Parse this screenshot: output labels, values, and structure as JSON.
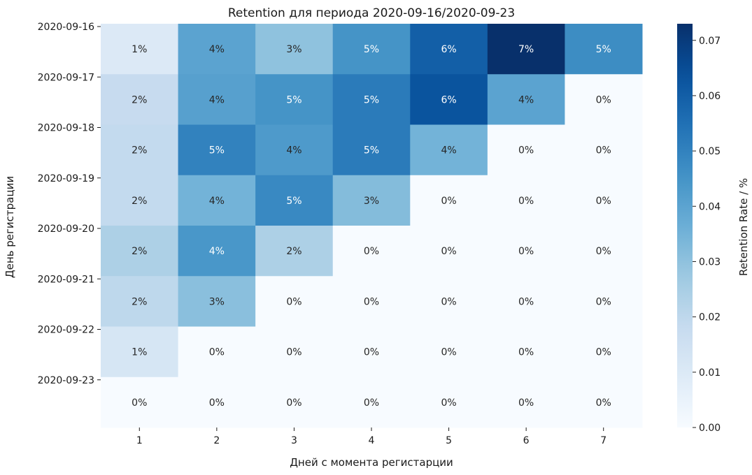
{
  "chart_data": {
    "type": "heatmap",
    "title": "Retention для периода 2020-09-16/2020-09-23",
    "xlabel": "Дней с момента регистарции",
    "ylabel": "День регистрации",
    "x_categories": [
      "1",
      "2",
      "3",
      "4",
      "5",
      "6",
      "7"
    ],
    "y_categories": [
      "2020-09-16",
      "2020-09-17",
      "2020-09-18",
      "2020-09-19",
      "2020-09-20",
      "2020-09-21",
      "2020-09-22",
      "2020-09-23"
    ],
    "values": [
      [
        0.01,
        0.04,
        0.03,
        0.045,
        0.06,
        0.073,
        0.047
      ],
      [
        0.018,
        0.041,
        0.045,
        0.052,
        0.063,
        0.04,
        0.0
      ],
      [
        0.019,
        0.05,
        0.043,
        0.052,
        0.035,
        0.0,
        0.0
      ],
      [
        0.019,
        0.035,
        0.048,
        0.032,
        0.0,
        0.0,
        0.0
      ],
      [
        0.024,
        0.044,
        0.024,
        0.0,
        0.0,
        0.0,
        0.0
      ],
      [
        0.02,
        0.031,
        0.0,
        0.0,
        0.0,
        0.0,
        0.0
      ],
      [
        0.012,
        0.0,
        0.0,
        0.0,
        0.0,
        0.0,
        0.0
      ],
      [
        0.0,
        0.0,
        0.0,
        0.0,
        0.0,
        0.0,
        0.0
      ]
    ],
    "cell_labels": [
      [
        "1%",
        "4%",
        "3%",
        "5%",
        "6%",
        "7%",
        "5%"
      ],
      [
        "2%",
        "4%",
        "5%",
        "5%",
        "6%",
        "4%",
        "0%"
      ],
      [
        "2%",
        "5%",
        "4%",
        "5%",
        "4%",
        "0%",
        "0%"
      ],
      [
        "2%",
        "4%",
        "5%",
        "3%",
        "0%",
        "0%",
        "0%"
      ],
      [
        "2%",
        "4%",
        "2%",
        "0%",
        "0%",
        "0%",
        "0%"
      ],
      [
        "2%",
        "3%",
        "0%",
        "0%",
        "0%",
        "0%",
        "0%"
      ],
      [
        "1%",
        "0%",
        "0%",
        "0%",
        "0%",
        "0%",
        "0%"
      ],
      [
        "0%",
        "0%",
        "0%",
        "0%",
        "0%",
        "0%",
        "0%"
      ]
    ],
    "colorbar": {
      "label": "Retention Rate / %",
      "vmin": 0.0,
      "vmax": 0.073,
      "ticks": [
        "0.00",
        "0.01",
        "0.02",
        "0.03",
        "0.04",
        "0.05",
        "0.06",
        "0.07"
      ],
      "colormap": "Blues"
    },
    "grid": false,
    "legend": "colorbar-right"
  }
}
